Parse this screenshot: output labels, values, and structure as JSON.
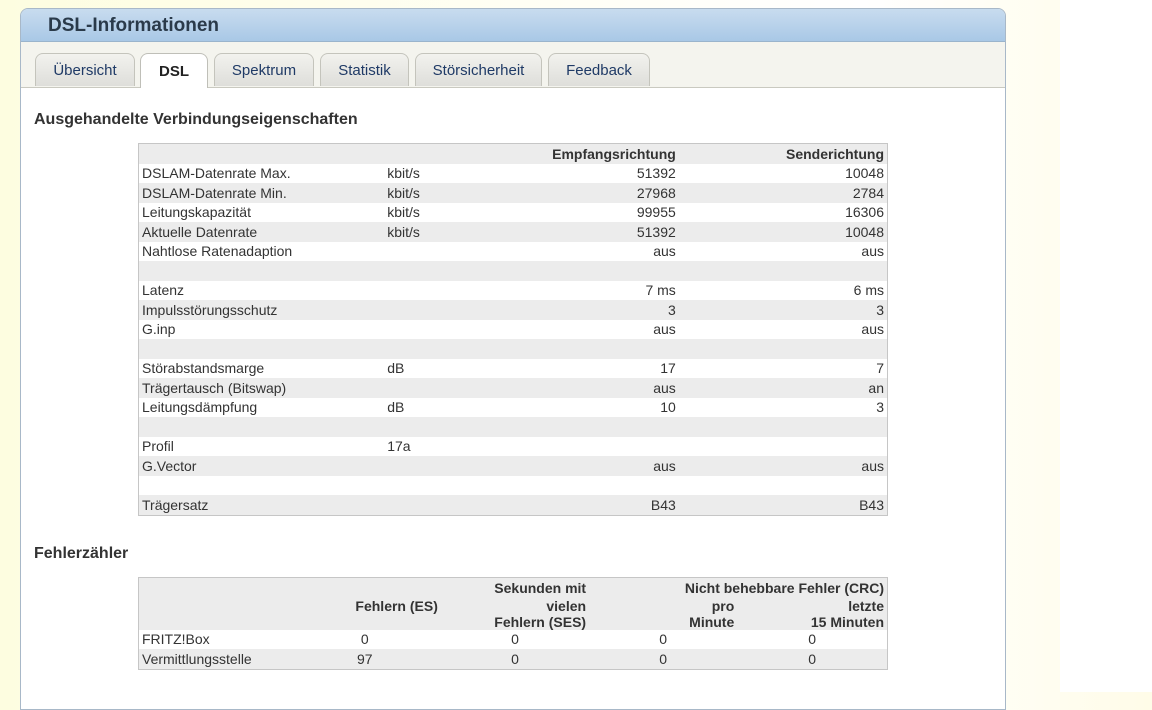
{
  "page_title": "DSL-Informationen",
  "tabs": [
    "Übersicht",
    "DSL",
    "Spektrum",
    "Statistik",
    "Störsicherheit",
    "Feedback"
  ],
  "active_tab": "DSL",
  "section1": {
    "title": "Ausgehandelte Verbindungseigenschaften",
    "headers": [
      "",
      "",
      "Empfangsrichtung",
      "Senderichtung"
    ],
    "rows": [
      {
        "label": "DSLAM-Datenrate Max.",
        "unit": "kbit/s",
        "rx": "51392",
        "tx": "10048"
      },
      {
        "label": "DSLAM-Datenrate Min.",
        "unit": "kbit/s",
        "rx": "27968",
        "tx": "2784"
      },
      {
        "label": "Leitungskapazität",
        "unit": "kbit/s",
        "rx": "99955",
        "tx": "16306"
      },
      {
        "label": "Aktuelle Datenrate",
        "unit": "kbit/s",
        "rx": "51392",
        "tx": "10048"
      },
      {
        "label": "Nahtlose Ratenadaption",
        "unit": "",
        "rx": "aus",
        "tx": "aus"
      },
      {
        "label": "",
        "unit": "",
        "rx": "",
        "tx": ""
      },
      {
        "label": "Latenz",
        "unit": "",
        "rx": "7 ms",
        "tx": "6 ms"
      },
      {
        "label": "Impulsstörungsschutz",
        "unit": "",
        "rx": "3",
        "tx": "3"
      },
      {
        "label": "G.inp",
        "unit": "",
        "rx": "aus",
        "tx": "aus"
      },
      {
        "label": "",
        "unit": "",
        "rx": "",
        "tx": ""
      },
      {
        "label": "Störabstandsmarge",
        "unit": "dB",
        "rx": "17",
        "tx": "7"
      },
      {
        "label": "Trägertausch (Bitswap)",
        "unit": "",
        "rx": "aus",
        "tx": "an"
      },
      {
        "label": "Leitungsdämpfung",
        "unit": "dB",
        "rx": "10",
        "tx": "3"
      },
      {
        "label": "",
        "unit": "",
        "rx": "",
        "tx": ""
      },
      {
        "label": "Profil",
        "unit": "17a",
        "rx": "",
        "tx": ""
      },
      {
        "label": "G.Vector",
        "unit": "",
        "rx": "aus",
        "tx": "aus"
      },
      {
        "label": "",
        "unit": "",
        "rx": "",
        "tx": ""
      },
      {
        "label": "Trägersatz",
        "unit": "",
        "rx": "B43",
        "tx": "B43"
      }
    ]
  },
  "section2": {
    "title": "Fehlerzähler",
    "group_headers": [
      "Sekunden mit",
      "Nicht behebbare Fehler (CRC)"
    ],
    "col_es": "Fehlern (ES)",
    "col_ses_1": "vielen",
    "col_ses_2": "Fehlern (SES)",
    "col_pm_1": "pro",
    "col_pm_2": "Minute",
    "col_15_1": "letzte",
    "col_15_2": "15 Minuten",
    "rows": [
      {
        "label": "FRITZ!Box",
        "es": "0",
        "ses": "0",
        "pm": "0",
        "m15": "0"
      },
      {
        "label": "Vermittlungsstelle",
        "es": "97",
        "ses": "0",
        "pm": "0",
        "m15": "0"
      }
    ]
  }
}
